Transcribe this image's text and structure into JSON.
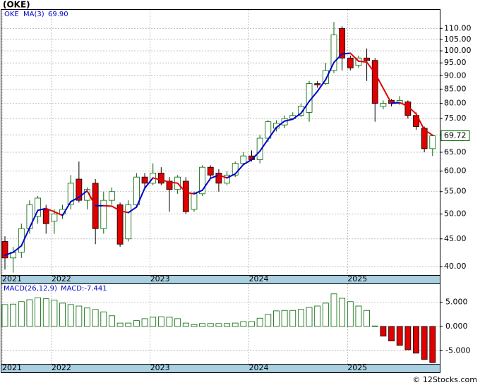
{
  "chart_data": {
    "type": "candlestick",
    "title": "(OKE)",
    "symbol": "OKE",
    "footer": "© 12Stocks.com",
    "categories": [
      "2021",
      null,
      null,
      null,
      null,
      null,
      "2022",
      null,
      null,
      null,
      null,
      null,
      null,
      null,
      null,
      null,
      null,
      null,
      "2023",
      null,
      null,
      null,
      null,
      null,
      null,
      null,
      null,
      null,
      null,
      null,
      "2024",
      null,
      null,
      null,
      null,
      null,
      null,
      null,
      null,
      null,
      null,
      null,
      "2025",
      null,
      null,
      null,
      null,
      null,
      null,
      null,
      null,
      null,
      null
    ],
    "open": [
      44.5,
      41.5,
      42.5,
      47,
      49.5,
      51,
      48.5,
      50,
      52,
      58,
      53,
      57,
      47,
      53,
      52,
      45,
      52,
      58.5,
      57,
      59.5,
      57.5,
      55.5,
      57.5,
      51,
      54.5,
      61,
      59.5,
      57,
      59,
      62,
      64,
      63,
      69,
      72,
      73,
      75,
      76,
      77,
      87,
      87,
      92,
      110,
      97,
      94,
      97,
      96,
      79,
      81,
      80,
      80.5,
      76,
      72,
      66
    ],
    "close": [
      41.5,
      42.5,
      47,
      52,
      53.5,
      48,
      50,
      51,
      57,
      53,
      55.5,
      47,
      53,
      55,
      44,
      52,
      58.5,
      57,
      59.5,
      57,
      55.5,
      58.5,
      50.5,
      54.5,
      61,
      59,
      57,
      59,
      62,
      64,
      63,
      69,
      74,
      73.5,
      75,
      76,
      79,
      87,
      86.5,
      92,
      107,
      97,
      93,
      97,
      96,
      80,
      80,
      80,
      81,
      76,
      72.5,
      66,
      69.72
    ],
    "high": [
      45.5,
      43.5,
      48,
      53,
      54,
      52,
      51,
      52,
      59,
      62.5,
      56,
      58,
      55,
      56,
      52.5,
      53,
      59.5,
      59.5,
      62,
      61,
      58.5,
      59,
      58.5,
      55,
      61.5,
      61.5,
      60.5,
      60,
      62.5,
      65,
      65.5,
      70,
      74.5,
      74.5,
      76,
      77,
      80,
      88,
      88,
      95,
      113,
      111,
      98,
      98,
      101,
      97,
      81,
      81.5,
      82.5,
      81,
      77,
      72.5,
      70
    ],
    "low": [
      39.5,
      39,
      41.5,
      46,
      48,
      46,
      46,
      49,
      51,
      52.5,
      51,
      44,
      46,
      52,
      43.5,
      44.5,
      51.5,
      56,
      56.5,
      56.5,
      50.5,
      54.5,
      50,
      50.5,
      54,
      58,
      55,
      56.5,
      58.5,
      61.5,
      62.5,
      62,
      68,
      71,
      72,
      74.5,
      75.5,
      74,
      85.5,
      86.5,
      91,
      92,
      92,
      93,
      88,
      74,
      78,
      79,
      79.5,
      75,
      71.5,
      65,
      64
    ],
    "up_color": "#006400",
    "down_color": "#e00000",
    "log_scale": true,
    "grid": true,
    "ylim": [
      38.6,
      119
    ],
    "yticks": [
      {
        "value": 40,
        "label": "40.00"
      },
      {
        "value": 45,
        "label": "45.00"
      },
      {
        "value": 50,
        "label": "50.00"
      },
      {
        "value": 55,
        "label": "55.00"
      },
      {
        "value": 60,
        "label": "60.00"
      },
      {
        "value": 65,
        "label": "65.00"
      },
      {
        "value": 70,
        "label": "70.00"
      },
      {
        "value": 75,
        "label": "75.00"
      },
      {
        "value": 80,
        "label": "80.00"
      },
      {
        "value": 85,
        "label": "85.00"
      },
      {
        "value": 90,
        "label": "90.00"
      },
      {
        "value": 95,
        "label": "95.00"
      },
      {
        "value": 100,
        "label": "100.00"
      },
      {
        "value": 105,
        "label": "105.00"
      },
      {
        "value": 110,
        "label": "110.00"
      }
    ],
    "ma": {
      "name": "MA(3)",
      "last_label": "69.90",
      "up_color": "#0000cc",
      "down_color": "#e00000",
      "values": [
        42,
        42.5,
        43.7,
        47.2,
        50.8,
        51.2,
        50.5,
        49.7,
        52.7,
        53.7,
        55.2,
        51.8,
        51.8,
        51.7,
        50.7,
        50.3,
        51.5,
        55.8,
        58.3,
        57.8,
        57.3,
        57,
        54.8,
        54.5,
        55.3,
        58.2,
        59,
        58.3,
        59.3,
        61.7,
        63,
        65.3,
        68.7,
        72.2,
        74.2,
        74.8,
        76.7,
        80.7,
        84.2,
        88.5,
        95.2,
        98.7,
        99,
        95.7,
        95.3,
        91,
        85.3,
        80,
        80.3,
        79,
        76.5,
        71.5,
        69.9
      ]
    },
    "macd": {
      "name": "MACD(26,12,9)",
      "legend_label": "MACD:-7.441",
      "up_color": "#006400",
      "down_color": "#e00000",
      "ylim": [
        -7.7,
        8.7
      ],
      "yticks": [
        {
          "value": 5,
          "label": "5.000"
        },
        {
          "value": 0,
          "label": "0.000"
        },
        {
          "value": -5,
          "label": "-5.000"
        }
      ],
      "values": [
        4.5,
        4.6,
        5.1,
        5.5,
        5.9,
        5.7,
        5.4,
        4.8,
        4.5,
        4.2,
        3.8,
        3.5,
        3,
        2.2,
        0.7,
        0.7,
        1.2,
        1.6,
        1.9,
        2,
        1.9,
        1.6,
        0.7,
        0.4,
        0.6,
        0.6,
        0.6,
        0.6,
        0.7,
        1,
        1,
        1.7,
        2.5,
        3.2,
        3.3,
        3.3,
        3.5,
        3.9,
        4.2,
        4.8,
        6.7,
        5.8,
        5.1,
        4.2,
        3.3,
        0.1,
        -2,
        -3,
        -3.9,
        -4.8,
        -5.5,
        -6.8,
        -7.441
      ]
    }
  }
}
